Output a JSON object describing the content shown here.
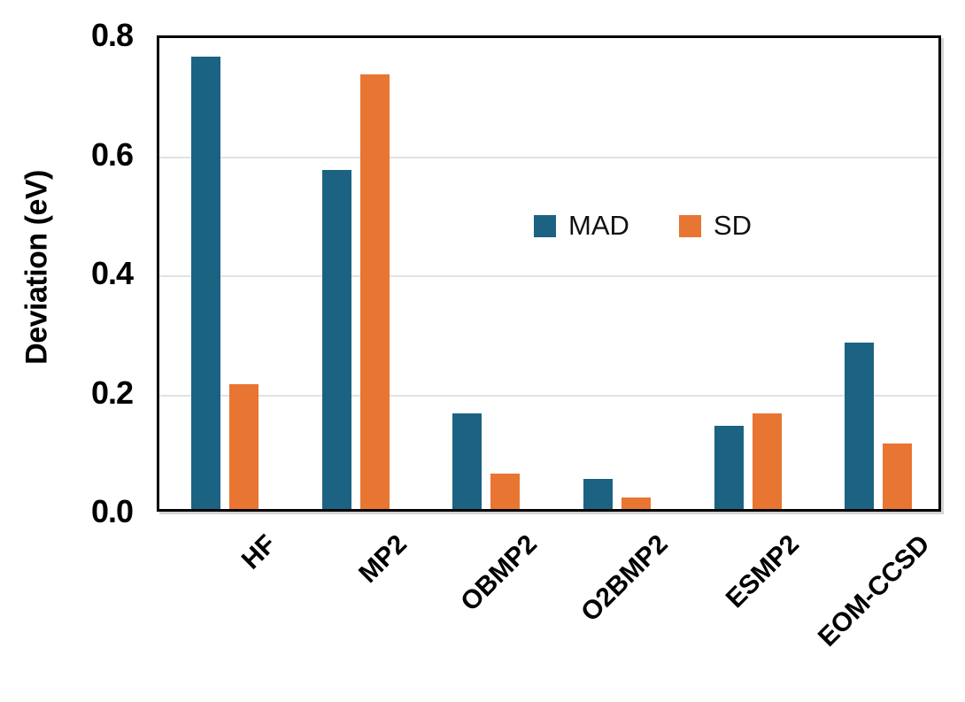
{
  "chart_data": {
    "type": "bar",
    "title": "",
    "xlabel": "",
    "ylabel": "Deviation (eV)",
    "ylim": [
      0,
      0.8
    ],
    "yticks": [
      0.0,
      0.2,
      0.4,
      0.6,
      0.8
    ],
    "ytick_labels": [
      "0.0",
      "0.2",
      "0.4",
      "0.6",
      "0.8"
    ],
    "grid": true,
    "legend_position": "upper-center-right-inside",
    "categories": [
      "HF",
      "MP2",
      "OBMP2",
      "O2BMP2",
      "ESMP2",
      "EOM-CCSD"
    ],
    "series": [
      {
        "name": "MAD",
        "color": "#1b6283",
        "values": [
          0.76,
          0.57,
          0.16,
          0.05,
          0.14,
          0.28
        ]
      },
      {
        "name": "SD",
        "color": "#e87532",
        "values": [
          0.21,
          0.73,
          0.06,
          0.02,
          0.16,
          0.11
        ]
      }
    ]
  },
  "colors": {
    "mad": "#1b6283",
    "sd": "#e87532",
    "gridline": "#e2e2e2",
    "border": "#000000",
    "text": "#000000"
  }
}
